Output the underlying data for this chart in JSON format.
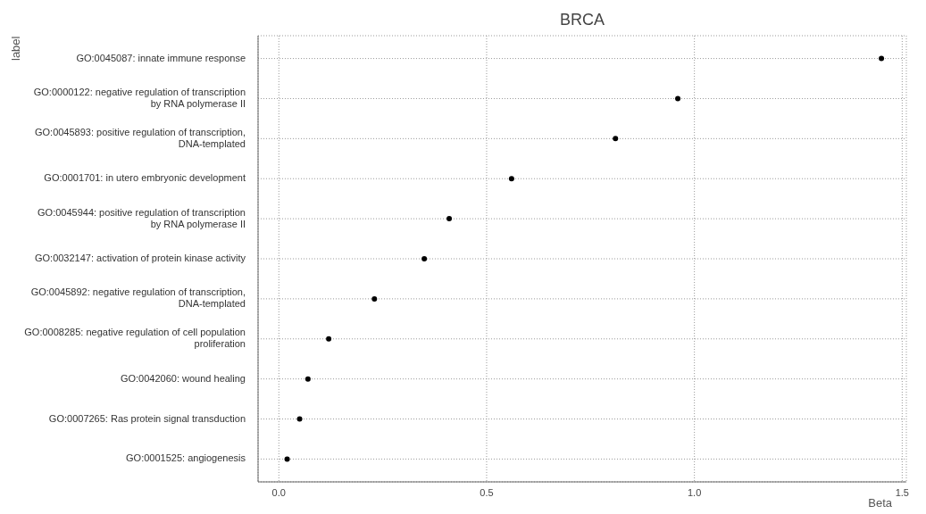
{
  "chart_data": {
    "type": "scatter",
    "title": "BRCA",
    "xlabel": "Beta",
    "ylabel": "label",
    "orientation": "horizontal",
    "categories": [
      "GO:0045087: innate immune response",
      "GO:0000122: negative regulation of transcription by RNA polymerase II",
      "GO:0045893: positive regulation of transcription, DNA-templated",
      "GO:0001701: in utero embryonic development",
      "GO:0045944: positive regulation of transcription by RNA polymerase II",
      "GO:0032147: activation of protein kinase activity",
      "GO:0045892: negative regulation of transcription, DNA-templated",
      "GO:0008285: negative regulation of cell population proliferation",
      "GO:0042060: wound healing",
      "GO:0007265: Ras protein signal transduction",
      "GO:0001525: angiogenesis"
    ],
    "values": [
      1.45,
      0.96,
      0.81,
      0.56,
      0.41,
      0.35,
      0.23,
      0.12,
      0.07,
      0.05,
      0.02
    ],
    "color": "#000000",
    "marker": "circle",
    "xlim": [
      -0.05,
      1.51
    ],
    "xticks": [
      {
        "value": 0,
        "label": "0.0"
      },
      0.5,
      {
        "value": 1,
        "label": "1.0"
      },
      1.5
    ],
    "grid": true
  }
}
